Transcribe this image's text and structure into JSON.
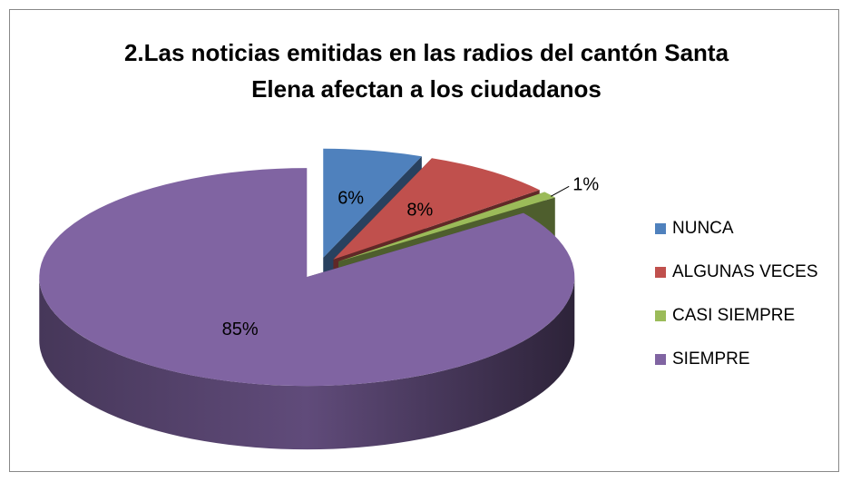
{
  "chart_data": {
    "type": "pie",
    "title": "2.Las noticias emitidas en las radios del cantón Santa Elena afectan a los ciudadanos",
    "categories": [
      "NUNCA",
      "ALGUNAS VECES",
      "CASI SIEMPRE",
      "SIEMPRE"
    ],
    "values": [
      6,
      8,
      1,
      85
    ],
    "value_labels": [
      "6%",
      "8%",
      "1%",
      "85%"
    ],
    "colors": [
      "#4f81bd",
      "#c0504d",
      "#9bbb59",
      "#8064a2"
    ],
    "legend": "right"
  }
}
